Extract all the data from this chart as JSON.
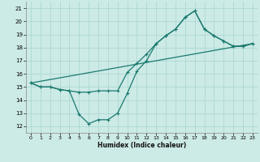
{
  "xlabel": "Humidex (Indice chaleur)",
  "xlim": [
    -0.5,
    23.5
  ],
  "ylim": [
    11.5,
    21.5
  ],
  "xticks": [
    0,
    1,
    2,
    3,
    4,
    5,
    6,
    7,
    8,
    9,
    10,
    11,
    12,
    13,
    14,
    15,
    16,
    17,
    18,
    19,
    20,
    21,
    22,
    23
  ],
  "yticks": [
    12,
    13,
    14,
    15,
    16,
    17,
    18,
    19,
    20,
    21
  ],
  "bg_color": "#cceae6",
  "line_color": "#1a7a6e",
  "grid_color": "#a8d5d0",
  "line1_x": [
    0,
    1,
    2,
    3,
    4,
    5,
    6,
    7,
    8,
    9,
    10,
    11,
    12,
    13,
    14,
    15,
    16,
    17,
    18,
    19,
    20,
    21,
    22,
    23
  ],
  "line1_y": [
    15.3,
    15.0,
    15.0,
    14.8,
    14.7,
    12.9,
    12.2,
    12.5,
    12.5,
    13.0,
    14.5,
    16.2,
    17.0,
    18.3,
    18.9,
    19.4,
    20.3,
    20.8,
    19.4,
    18.9,
    18.5,
    18.1,
    18.1,
    18.3
  ],
  "line2_x": [
    0,
    1,
    2,
    3,
    4,
    5,
    6,
    7,
    8,
    9,
    10,
    11,
    12,
    13,
    14,
    15,
    16,
    17,
    18,
    19,
    20,
    21,
    22,
    23
  ],
  "line2_y": [
    15.3,
    15.0,
    15.0,
    14.8,
    14.7,
    14.6,
    14.6,
    14.7,
    14.7,
    14.7,
    16.1,
    16.8,
    17.5,
    18.3,
    18.9,
    19.4,
    20.3,
    20.8,
    19.4,
    18.9,
    18.5,
    18.1,
    18.1,
    18.3
  ],
  "line3_x": [
    0,
    23
  ],
  "line3_y": [
    15.3,
    18.3
  ]
}
